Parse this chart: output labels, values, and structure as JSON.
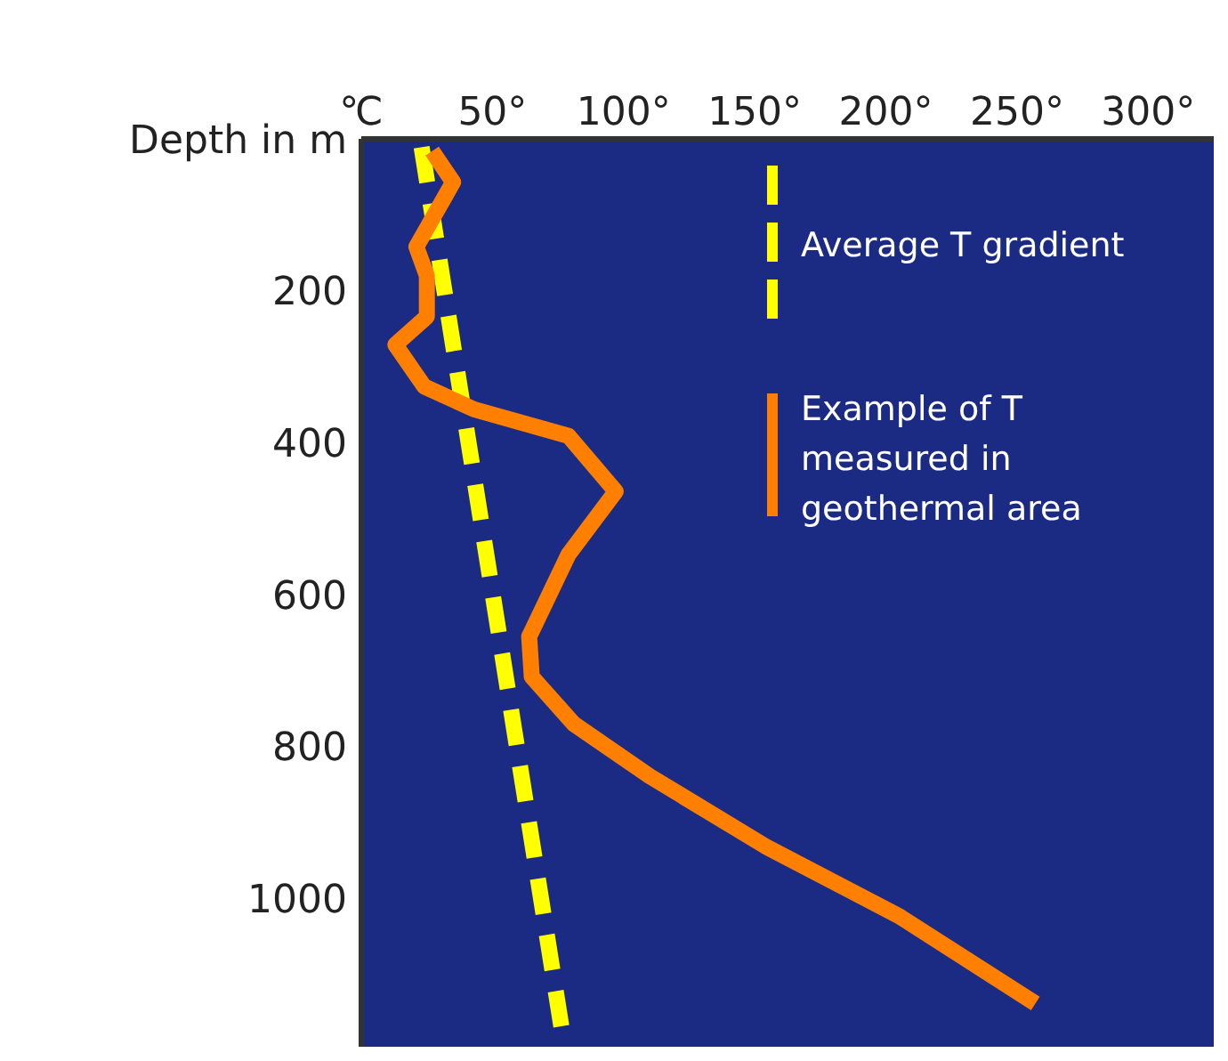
{
  "chart_data": {
    "type": "line",
    "xlim": [
      0,
      325
    ],
    "xticks": [
      {
        "value": 0,
        "label": "℃"
      },
      {
        "value": 50,
        "label": "50°"
      },
      {
        "value": 100,
        "label": "100°"
      },
      {
        "value": 150,
        "label": "150°"
      },
      {
        "value": 200,
        "label": "200°"
      },
      {
        "value": 250,
        "label": "250°"
      },
      {
        "value": 300,
        "label": "300°"
      }
    ],
    "ylim": [
      1195,
      0
    ],
    "yticks": [
      {
        "value": 0,
        "label": "Depth in m"
      },
      200,
      400,
      600,
      800,
      1000
    ],
    "legend": "top right",
    "marker": "none",
    "series": [
      {
        "name": "Average T gradient",
        "color": "#ffff00",
        "line_style": "dashed",
        "x": [
          23,
          77
        ],
        "values": [
          11,
          1184
        ]
      },
      {
        "name": "Example of T measured in geothermal area",
        "color": "#ff8000",
        "line_style": "solid",
        "x": [
          27,
          35,
          21,
          25,
          25,
          13,
          24,
          43,
          79,
          97,
          79,
          65,
          64,
          65,
          81,
          110,
          154,
          205,
          257
        ],
        "values": [
          16,
          57,
          142,
          180,
          234,
          271,
          326,
          356,
          391,
          464,
          547,
          648,
          655,
          708,
          770,
          839,
          931,
          1023,
          1138
        ]
      }
    ]
  }
}
